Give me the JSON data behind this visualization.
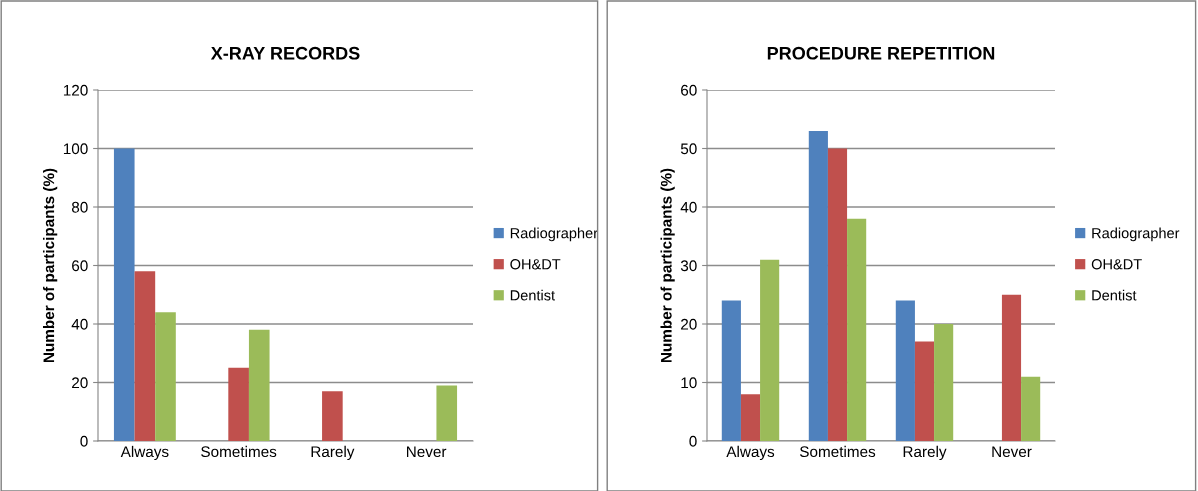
{
  "chart_data": [
    {
      "type": "bar",
      "title": "X-RAY RECORDS",
      "ylabel": "Number of participants (%)",
      "categories": [
        "Always",
        "Sometimes",
        "Rarely",
        "Never"
      ],
      "ylim": [
        0,
        120
      ],
      "yticks": [
        0,
        20,
        40,
        60,
        80,
        100,
        120
      ],
      "grid": "y",
      "legend": "right",
      "series": [
        {
          "name": "Radiographer",
          "color": "#4f81bd",
          "values": [
            100,
            0,
            0,
            0
          ]
        },
        {
          "name": "OH&DT",
          "color": "#c0504d",
          "values": [
            58,
            25,
            17,
            0
          ]
        },
        {
          "name": "Dentist",
          "color": "#9bbb59",
          "values": [
            44,
            38,
            0,
            19
          ]
        }
      ]
    },
    {
      "type": "bar",
      "title": "PROCEDURE REPETITION",
      "ylabel": "Number of participants (%)",
      "categories": [
        "Always",
        "Sometimes",
        "Rarely",
        "Never"
      ],
      "ylim": [
        0,
        60
      ],
      "yticks": [
        0,
        10,
        20,
        30,
        40,
        50,
        60
      ],
      "grid": "y",
      "legend": "right",
      "series": [
        {
          "name": "Radiographer",
          "color": "#4f81bd",
          "values": [
            24,
            53,
            24,
            0
          ]
        },
        {
          "name": "OH&DT",
          "color": "#c0504d",
          "values": [
            8,
            50,
            17,
            25
          ]
        },
        {
          "name": "Dentist",
          "color": "#9bbb59",
          "values": [
            31,
            38,
            20,
            11
          ]
        }
      ]
    }
  ]
}
